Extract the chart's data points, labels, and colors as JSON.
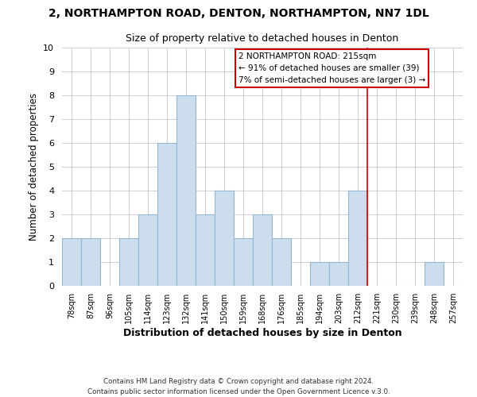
{
  "title": "2, NORTHAMPTON ROAD, DENTON, NORTHAMPTON, NN7 1DL",
  "subtitle": "Size of property relative to detached houses in Denton",
  "xlabel": "Distribution of detached houses by size in Denton",
  "ylabel": "Number of detached properties",
  "footer_lines": [
    "Contains HM Land Registry data © Crown copyright and database right 2024.",
    "Contains public sector information licensed under the Open Government Licence v.3.0."
  ],
  "bin_labels": [
    "78sqm",
    "87sqm",
    "96sqm",
    "105sqm",
    "114sqm",
    "123sqm",
    "132sqm",
    "141sqm",
    "150sqm",
    "159sqm",
    "168sqm",
    "176sqm",
    "185sqm",
    "194sqm",
    "203sqm",
    "212sqm",
    "221sqm",
    "230sqm",
    "239sqm",
    "248sqm",
    "257sqm"
  ],
  "bar_values": [
    2,
    2,
    0,
    2,
    3,
    6,
    8,
    3,
    4,
    2,
    3,
    2,
    0,
    1,
    1,
    4,
    0,
    0,
    0,
    1,
    0
  ],
  "bar_color": "#ccdded",
  "bar_edge_color": "#94b8d0",
  "grid_color": "#c8c8d0",
  "reference_line_x": 15.5,
  "reference_line_color": "#cc0000",
  "annotation_box": {
    "text_lines": [
      "2 NORTHAMPTON ROAD: 215sqm",
      "← 91% of detached houses are smaller (39)",
      "7% of semi-detached houses are larger (3) →"
    ],
    "box_color": "#ffffff",
    "border_color": "#cc0000"
  },
  "ylim": [
    0,
    10
  ],
  "yticks": [
    0,
    1,
    2,
    3,
    4,
    5,
    6,
    7,
    8,
    9,
    10
  ]
}
